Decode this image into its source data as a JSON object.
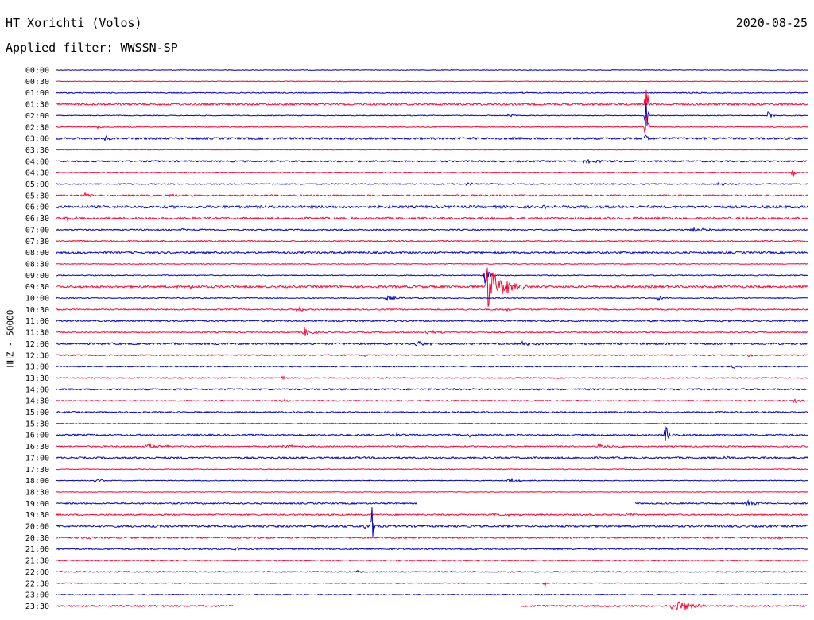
{
  "header": {
    "station": "HT Xorichti (Volos)",
    "date": "2020-08-25",
    "filter": "Applied filter: WWSSN-SP",
    "channel": "HHZ - 50000"
  },
  "chart_data": {
    "type": "line",
    "title": "HT Xorichti (Volos)",
    "subtitle": "Applied filter: WWSSN-SP",
    "ylabel": "HHZ - 50000",
    "trace_colors": [
      "#0000c8",
      "#ff0033"
    ],
    "row_labels": [
      "00:00",
      "00:30",
      "01:00",
      "01:30",
      "02:00",
      "02:30",
      "03:00",
      "03:30",
      "04:00",
      "04:30",
      "05:00",
      "05:30",
      "06:00",
      "06:30",
      "07:00",
      "07:30",
      "08:00",
      "08:30",
      "09:00",
      "09:30",
      "10:00",
      "10:30",
      "11:00",
      "11:30",
      "12:00",
      "12:30",
      "13:00",
      "13:30",
      "14:00",
      "14:30",
      "15:00",
      "15:30",
      "16:00",
      "16:30",
      "17:00",
      "17:30",
      "18:00",
      "18:30",
      "19:00",
      "19:30",
      "20:00",
      "20:30",
      "21:00",
      "21:30",
      "22:00",
      "22:30",
      "23:00",
      "23:30"
    ],
    "rows": [
      {
        "noise": 0.4,
        "events": []
      },
      {
        "noise": 0.4,
        "events": []
      },
      {
        "noise": 0.6,
        "events": [
          [
            0.62,
            2,
            3
          ]
        ]
      },
      {
        "noise": 1.2,
        "events": [
          [
            0.785,
            36,
            2
          ]
        ]
      },
      {
        "noise": 0.5,
        "events": [
          [
            0.6,
            2,
            10
          ],
          [
            0.785,
            30,
            2
          ],
          [
            0.947,
            7,
            4
          ]
        ]
      },
      {
        "noise": 0.5,
        "events": [
          [
            0.055,
            2,
            6
          ],
          [
            0.785,
            20,
            2
          ]
        ]
      },
      {
        "noise": 1.3,
        "events": [
          [
            0.065,
            5,
            3
          ],
          [
            0.785,
            10,
            2
          ]
        ]
      },
      {
        "noise": 0.4,
        "events": [
          [
            0.34,
            2,
            2
          ]
        ]
      },
      {
        "noise": 1.0,
        "events": [
          [
            0.7,
            2,
            25
          ]
        ]
      },
      {
        "noise": 0.5,
        "events": [
          [
            0.98,
            9,
            3
          ]
        ]
      },
      {
        "noise": 0.7,
        "events": [
          [
            0.548,
            4,
            3
          ],
          [
            0.88,
            3,
            10
          ]
        ]
      },
      {
        "noise": 1.0,
        "events": [
          [
            0.038,
            3,
            6
          ],
          [
            0.15,
            2,
            20
          ]
        ]
      },
      {
        "noise": 1.6,
        "events": [
          [
            0.65,
            2,
            4
          ]
        ]
      },
      {
        "noise": 1.3,
        "events": [
          [
            0.012,
            3,
            10
          ]
        ]
      },
      {
        "noise": 0.8,
        "events": [
          [
            0.16,
            2,
            20
          ],
          [
            0.845,
            3,
            25
          ]
        ]
      },
      {
        "noise": 0.8,
        "events": []
      },
      {
        "noise": 1.2,
        "events": []
      },
      {
        "noise": 0.5,
        "events": []
      },
      {
        "noise": 0.6,
        "events": [
          [
            0.57,
            16,
            4
          ]
        ]
      },
      {
        "noise": 1.4,
        "events": [
          [
            0.18,
            8,
            2
          ],
          [
            0.573,
            27,
            20
          ]
        ]
      },
      {
        "noise": 0.6,
        "events": [
          [
            0.44,
            3,
            10
          ],
          [
            0.8,
            3,
            10
          ]
        ]
      },
      {
        "noise": 0.8,
        "events": [
          [
            0.32,
            5,
            6
          ],
          [
            0.6,
            2,
            4
          ]
        ]
      },
      {
        "noise": 1.0,
        "events": []
      },
      {
        "noise": 0.7,
        "events": [
          [
            0.33,
            6,
            8
          ],
          [
            0.49,
            3,
            15
          ]
        ]
      },
      {
        "noise": 1.2,
        "events": [
          [
            0.48,
            5,
            8
          ],
          [
            0.62,
            3,
            10
          ]
        ]
      },
      {
        "noise": 0.8,
        "events": [
          [
            0.41,
            3,
            3
          ],
          [
            0.92,
            2,
            10
          ]
        ]
      },
      {
        "noise": 0.7,
        "events": [
          [
            0.9,
            3,
            10
          ]
        ]
      },
      {
        "noise": 0.7,
        "events": [
          [
            0.3,
            3,
            4
          ]
        ]
      },
      {
        "noise": 1.0,
        "events": []
      },
      {
        "noise": 0.7,
        "events": [
          [
            0.3,
            3,
            6
          ],
          [
            0.98,
            3,
            10
          ]
        ]
      },
      {
        "noise": 0.9,
        "events": []
      },
      {
        "noise": 0.6,
        "events": []
      },
      {
        "noise": 1.0,
        "events": [
          [
            0.45,
            3,
            8
          ],
          [
            0.55,
            3,
            6
          ],
          [
            0.81,
            14,
            5
          ]
        ]
      },
      {
        "noise": 0.8,
        "events": [
          [
            0.12,
            3,
            20
          ],
          [
            0.3,
            2,
            20
          ],
          [
            0.72,
            3,
            20
          ]
        ]
      },
      {
        "noise": 1.1,
        "events": [
          [
            0.89,
            5,
            3
          ]
        ]
      },
      {
        "noise": 0.5,
        "events": []
      },
      {
        "noise": 0.5,
        "events": [
          [
            0.05,
            3,
            10
          ],
          [
            0.6,
            3,
            15
          ]
        ]
      },
      {
        "noise": 0.4,
        "events": []
      },
      {
        "noise": 0.9,
        "events": [
          [
            0.92,
            4,
            10
          ]
        ],
        "gap": [
          0.48,
          0.77
        ]
      },
      {
        "noise": 0.9,
        "events": [
          [
            0.76,
            8,
            4
          ],
          [
            0.58,
            2,
            20
          ]
        ]
      },
      {
        "noise": 1.3,
        "events": [
          [
            0.42,
            26,
            3
          ],
          [
            0.41,
            6,
            2
          ]
        ]
      },
      {
        "noise": 1.0,
        "events": [
          [
            0.04,
            3,
            4
          ],
          [
            0.96,
            4,
            2
          ]
        ]
      },
      {
        "noise": 0.9,
        "events": [
          [
            0.24,
            3,
            3
          ]
        ]
      },
      {
        "noise": 0.6,
        "events": []
      },
      {
        "noise": 0.6,
        "events": [
          [
            0.4,
            3,
            4
          ]
        ]
      },
      {
        "noise": 0.5,
        "events": [
          [
            0.65,
            5,
            2
          ]
        ]
      },
      {
        "noise": 0.6,
        "events": []
      },
      {
        "noise": 1.0,
        "events": [
          [
            0.82,
            11,
            18
          ],
          [
            0.6,
            4,
            2
          ]
        ],
        "gap": [
          0.235,
          0.618
        ]
      }
    ]
  }
}
